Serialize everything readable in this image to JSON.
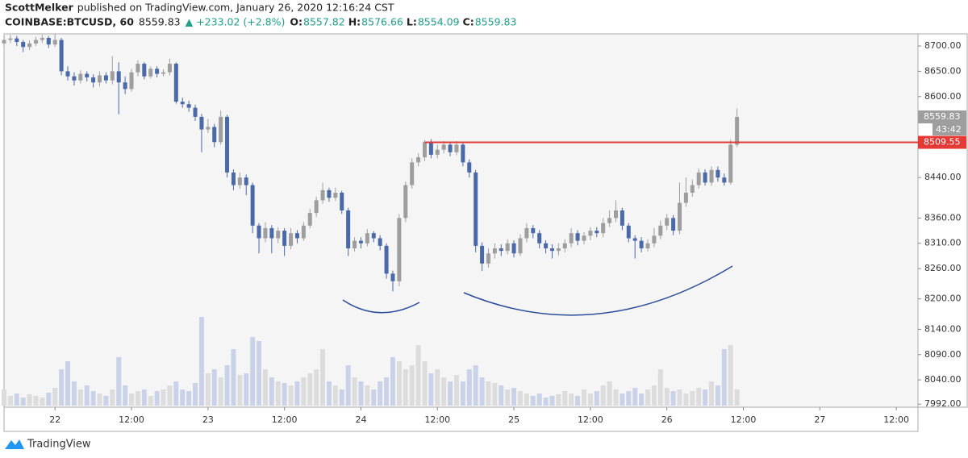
{
  "header": {
    "author": "ScottMelker",
    "published": "published on TradingView.com, January 26, 2020 12:16:24 CST"
  },
  "chart_data": {
    "type": "candlestick",
    "symbol": "COINBASE:BTCUSD, 60",
    "last": 8559.83,
    "change": "▲ +233.02 (+2.8%)",
    "ohlc": [
      {
        "label": "O:",
        "value": 8557.82
      },
      {
        "label": "H:",
        "value": 8576.66
      },
      {
        "label": "L:",
        "value": 8554.09
      },
      {
        "label": "C:",
        "value": 8559.83
      }
    ],
    "countdown": "43:42",
    "level": {
      "value": 8509.55,
      "start_x": 58,
      "color": "#e53935"
    },
    "x": [
      -8,
      -7,
      -6,
      -5,
      -4,
      -3,
      -2,
      -1,
      0,
      1,
      2,
      3,
      4,
      5,
      6,
      7,
      8,
      9,
      10,
      11,
      12,
      13,
      14,
      15,
      16,
      17,
      18,
      19,
      20,
      21,
      22,
      23,
      24,
      25,
      26,
      27,
      28,
      29,
      30,
      31,
      32,
      33,
      34,
      35,
      36,
      37,
      38,
      39,
      40,
      41,
      42,
      43,
      44,
      45,
      46,
      47,
      48,
      49,
      50,
      51,
      52,
      53,
      54,
      55,
      56,
      57,
      58,
      59,
      60,
      61,
      62,
      63,
      64,
      65,
      66,
      67,
      68,
      69,
      70,
      71,
      72,
      73,
      74,
      75,
      76,
      77,
      78,
      79,
      80,
      81,
      82,
      83,
      84,
      85,
      86,
      87,
      88,
      89,
      90,
      91,
      92,
      93,
      94,
      95,
      96,
      97,
      98,
      99,
      100,
      101,
      102,
      103,
      104,
      105,
      106,
      107
    ],
    "open": [
      8705,
      8712,
      8715,
      8708,
      8698,
      8705,
      8712,
      8716,
      8703,
      8712,
      8650,
      8640,
      8632,
      8645,
      8638,
      8628,
      8642,
      8632,
      8650,
      8628,
      8615,
      8648,
      8665,
      8640,
      8655,
      8645,
      8648,
      8665,
      8590,
      8585,
      8578,
      8560,
      8535,
      8540,
      8510,
      8560,
      8450,
      8425,
      8440,
      8425,
      8345,
      8320,
      8340,
      8320,
      8335,
      8305,
      8330,
      8320,
      8345,
      8370,
      8395,
      8415,
      8400,
      8410,
      8375,
      8300,
      8315,
      8310,
      8330,
      8320,
      8305,
      8250,
      8235,
      8360,
      8425,
      8470,
      8480,
      8510,
      8485,
      8495,
      8505,
      8490,
      8505,
      8470,
      8450,
      8305,
      8270,
      8290,
      8300,
      8295,
      8310,
      8290,
      8320,
      8340,
      8330,
      8310,
      8300,
      8295,
      8300,
      8310,
      8330,
      8315,
      8325,
      8335,
      8330,
      8350,
      8360,
      8375,
      8345,
      8320,
      8315,
      8300,
      8310,
      8325,
      8345,
      8360,
      8335,
      8390,
      8410,
      8425,
      8450,
      8430,
      8455,
      8440,
      8430,
      8505
    ],
    "high": [
      8720,
      8722,
      8720,
      8712,
      8711,
      8718,
      8722,
      8720,
      8724,
      8716,
      8660,
      8648,
      8652,
      8650,
      8644,
      8650,
      8648,
      8680,
      8668,
      8640,
      8655,
      8672,
      8668,
      8660,
      8660,
      8654,
      8675,
      8668,
      8598,
      8592,
      8584,
      8566,
      8556,
      8546,
      8572,
      8564,
      8456,
      8450,
      8446,
      8430,
      8350,
      8352,
      8346,
      8342,
      8340,
      8340,
      8336,
      8352,
      8378,
      8402,
      8430,
      8420,
      8420,
      8414,
      8380,
      8322,
      8322,
      8338,
      8334,
      8326,
      8310,
      8256,
      8368,
      8432,
      8478,
      8488,
      8514,
      8516,
      8505,
      8512,
      8510,
      8512,
      8510,
      8476,
      8455,
      8312,
      8300,
      8310,
      8308,
      8318,
      8316,
      8328,
      8350,
      8346,
      8336,
      8316,
      8308,
      8310,
      8318,
      8340,
      8336,
      8332,
      8342,
      8342,
      8360,
      8375,
      8395,
      8380,
      8350,
      8326,
      8322,
      8318,
      8340,
      8355,
      8368,
      8366,
      8430,
      8440,
      8436,
      8458,
      8456,
      8462,
      8462,
      8448,
      8515,
      8576.66
    ],
    "low": [
      8698,
      8706,
      8700,
      8688,
      8692,
      8700,
      8706,
      8696,
      8698,
      8642,
      8632,
      8622,
      8626,
      8630,
      8618,
      8620,
      8626,
      8624,
      8565,
      8605,
      8610,
      8640,
      8634,
      8636,
      8638,
      8640,
      8642,
      8586,
      8578,
      8570,
      8552,
      8490,
      8528,
      8500,
      8505,
      8440,
      8415,
      8418,
      8405,
      8330,
      8290,
      8312,
      8290,
      8310,
      8285,
      8298,
      8310,
      8315,
      8340,
      8362,
      8388,
      8392,
      8394,
      8368,
      8285,
      8294,
      8300,
      8304,
      8312,
      8296,
      8240,
      8215,
      8225,
      8352,
      8418,
      8462,
      8472,
      8478,
      8478,
      8488,
      8482,
      8484,
      8462,
      8440,
      8292,
      8255,
      8262,
      8280,
      8285,
      8288,
      8282,
      8285,
      8312,
      8320,
      8300,
      8290,
      8280,
      8286,
      8292,
      8302,
      8306,
      8308,
      8316,
      8322,
      8322,
      8342,
      8352,
      8336,
      8312,
      8280,
      8292,
      8294,
      8302,
      8318,
      8336,
      8326,
      8328,
      8382,
      8402,
      8418,
      8424,
      8424,
      8432,
      8424,
      8426,
      8500
    ],
    "close": [
      8712,
      8715,
      8708,
      8698,
      8705,
      8712,
      8716,
      8703,
      8712,
      8650,
      8640,
      8632,
      8645,
      8638,
      8628,
      8642,
      8632,
      8650,
      8628,
      8615,
      8648,
      8665,
      8640,
      8655,
      8645,
      8648,
      8665,
      8590,
      8585,
      8578,
      8560,
      8535,
      8540,
      8510,
      8560,
      8450,
      8425,
      8440,
      8425,
      8345,
      8320,
      8340,
      8320,
      8335,
      8305,
      8330,
      8320,
      8345,
      8370,
      8395,
      8415,
      8400,
      8410,
      8375,
      8300,
      8315,
      8310,
      8330,
      8320,
      8305,
      8250,
      8235,
      8360,
      8425,
      8470,
      8480,
      8510,
      8485,
      8495,
      8505,
      8490,
      8505,
      8470,
      8450,
      8305,
      8270,
      8290,
      8300,
      8295,
      8310,
      8290,
      8320,
      8340,
      8330,
      8310,
      8300,
      8295,
      8300,
      8310,
      8330,
      8315,
      8325,
      8335,
      8330,
      8350,
      8360,
      8375,
      8345,
      8320,
      8315,
      8300,
      8310,
      8325,
      8345,
      8360,
      8335,
      8390,
      8410,
      8425,
      8450,
      8430,
      8455,
      8440,
      8430,
      8505,
      8559.83
    ],
    "volume": [
      20,
      12,
      15,
      10,
      14,
      12,
      10,
      16,
      22,
      45,
      55,
      30,
      20,
      25,
      18,
      15,
      12,
      20,
      60,
      25,
      15,
      18,
      20,
      12,
      18,
      20,
      25,
      30,
      20,
      18,
      28,
      110,
      40,
      45,
      35,
      50,
      70,
      38,
      40,
      85,
      80,
      45,
      35,
      30,
      28,
      25,
      30,
      35,
      40,
      45,
      70,
      30,
      25,
      20,
      50,
      35,
      30,
      25,
      20,
      30,
      35,
      60,
      55,
      45,
      50,
      75,
      55,
      40,
      45,
      35,
      30,
      38,
      30,
      45,
      50,
      35,
      30,
      28,
      25,
      20,
      22,
      18,
      15,
      12,
      15,
      10,
      12,
      14,
      18,
      15,
      12,
      20,
      15,
      18,
      25,
      30,
      20,
      15,
      18,
      22,
      15,
      20,
      25,
      45,
      22,
      18,
      20,
      15,
      18,
      22,
      20,
      30,
      25,
      70,
      75,
      20
    ],
    "up_color": "#9e9e9e",
    "down_color": "#4a69a8",
    "volume_up_color": "#dcdcdc",
    "volume_down_color": "#c9d2e8",
    "grid": false,
    "xlim": [
      -8,
      135.4
    ],
    "xticks": [
      {
        "value": 0,
        "label": "22"
      },
      {
        "value": 12,
        "label": "12:00"
      },
      {
        "value": 24,
        "label": "23"
      },
      {
        "value": 36,
        "label": "12:00"
      },
      {
        "value": 48,
        "label": "24"
      },
      {
        "value": 60,
        "label": "12:00"
      },
      {
        "value": 72,
        "label": "25"
      },
      {
        "value": 84,
        "label": "12:00"
      },
      {
        "value": 96,
        "label": "26"
      },
      {
        "value": 108,
        "label": "12:00"
      },
      {
        "value": 120,
        "label": "27"
      },
      {
        "value": 132,
        "label": "12:00"
      }
    ],
    "ylim": [
      7986,
      8724
    ],
    "yticks": [
      {
        "value": 8700,
        "label": "8700.00"
      },
      {
        "value": 8650,
        "label": "8650.00"
      },
      {
        "value": 8600,
        "label": "8600.00"
      },
      {
        "value": 8440,
        "label": "8440.00"
      },
      {
        "value": 8360,
        "label": "8360.00"
      },
      {
        "value": 8310,
        "label": "8310.00"
      },
      {
        "value": 8260,
        "label": "8260.00"
      },
      {
        "value": 8200,
        "label": "8200.00"
      },
      {
        "value": 8140,
        "label": "8140.00"
      },
      {
        "value": 8090,
        "label": "8090.00"
      },
      {
        "value": 8040,
        "label": "8040.00"
      },
      {
        "value": 7992,
        "label": "7992.00"
      }
    ]
  },
  "footer": {
    "brand": "TradingView"
  }
}
